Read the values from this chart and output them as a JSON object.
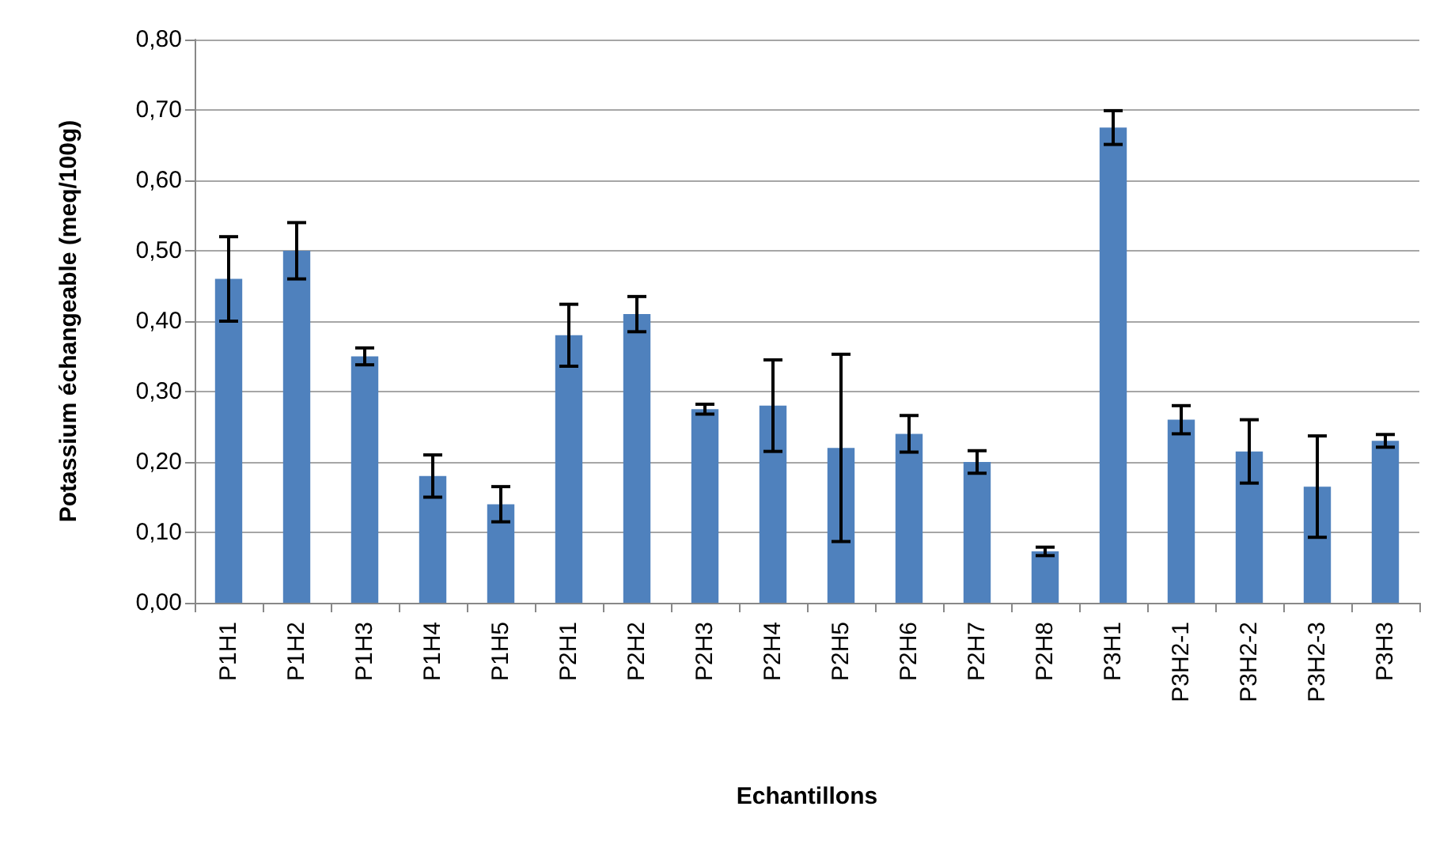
{
  "chart_data": {
    "type": "bar",
    "xlabel": "Echantillons",
    "ylabel": "Potassium échangeable (meq/100g)",
    "categories": [
      "P1H1",
      "P1H2",
      "P1H3",
      "P1H4",
      "P1H5",
      "P2H1",
      "P2H2",
      "P2H3",
      "P2H4",
      "P2H5",
      "P2H6",
      "P2H7",
      "P2H8",
      "P3H1",
      "P3H2-1",
      "P3H2-2",
      "P3H2-3",
      "P3H3"
    ],
    "values": [
      0.46,
      0.5,
      0.35,
      0.18,
      0.14,
      0.38,
      0.41,
      0.275,
      0.28,
      0.22,
      0.24,
      0.2,
      0.073,
      0.675,
      0.26,
      0.215,
      0.165,
      0.23
    ],
    "errors": [
      0.06,
      0.04,
      0.012,
      0.03,
      0.025,
      0.044,
      0.025,
      0.007,
      0.065,
      0.133,
      0.026,
      0.016,
      0.006,
      0.024,
      0.02,
      0.045,
      0.072,
      0.009
    ],
    "color": "#4f81bd",
    "ylim": [
      0,
      0.8
    ],
    "yticks": [
      {
        "value": 0,
        "label": "0,00"
      },
      {
        "value": 0.1,
        "label": "0,10"
      },
      {
        "value": 0.2,
        "label": "0,20"
      },
      {
        "value": 0.3,
        "label": "0,30"
      },
      {
        "value": 0.4,
        "label": "0,40"
      },
      {
        "value": 0.5,
        "label": "0,50"
      },
      {
        "value": 0.6,
        "label": "0,60"
      },
      {
        "value": 0.7,
        "label": "0,70"
      },
      {
        "value": 0.8,
        "label": "0,80"
      }
    ],
    "grid": "y"
  }
}
